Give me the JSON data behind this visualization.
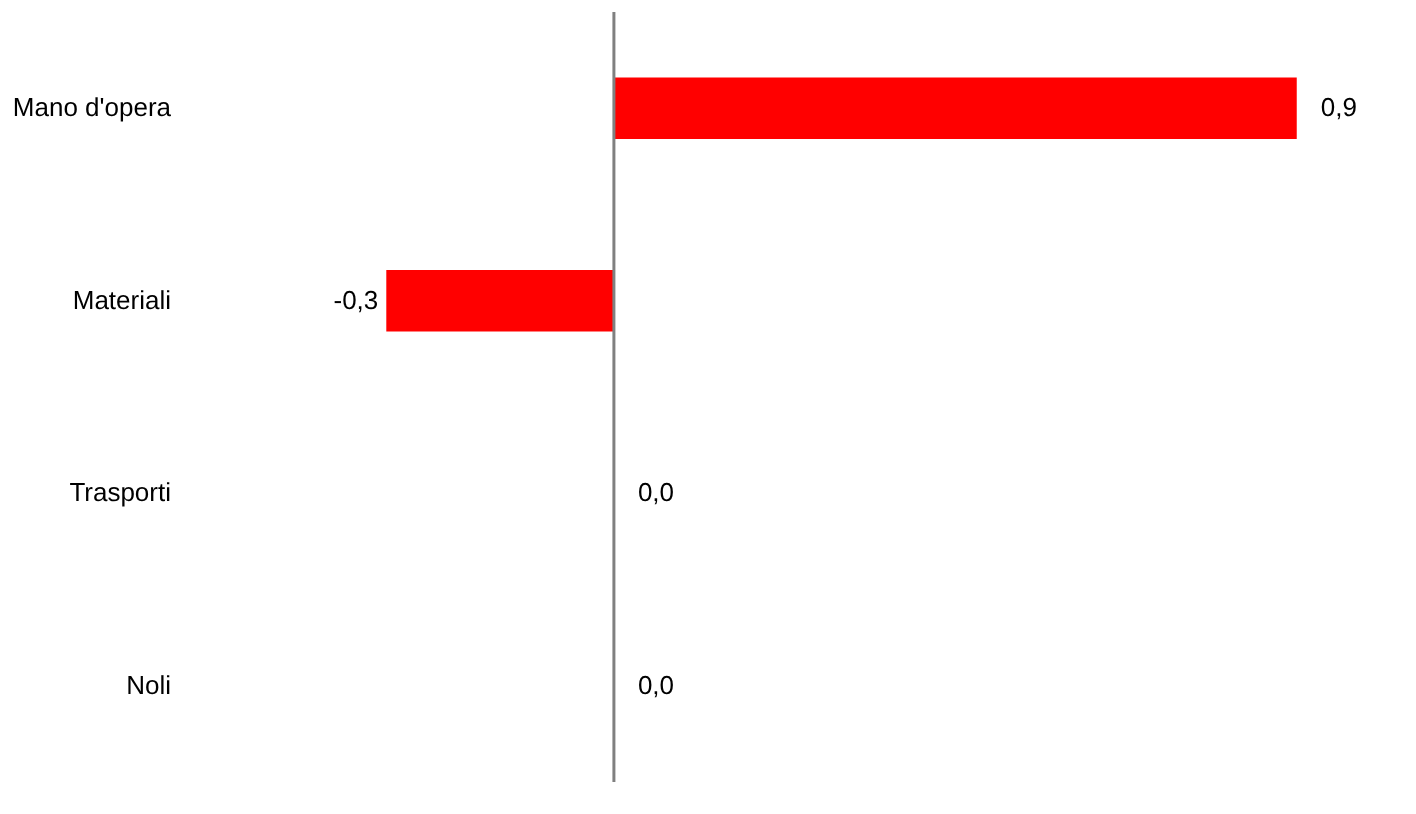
{
  "chart_data": {
    "type": "bar",
    "orientation": "horizontal",
    "categories": [
      "Mano d'opera",
      "Materiali",
      "Trasporti",
      "Noli"
    ],
    "values": [
      0.9,
      -0.3,
      0.0,
      0.0
    ],
    "value_labels": [
      "0,9",
      "-0,3",
      "0,0",
      "0,0"
    ],
    "color": "#ff0000"
  }
}
